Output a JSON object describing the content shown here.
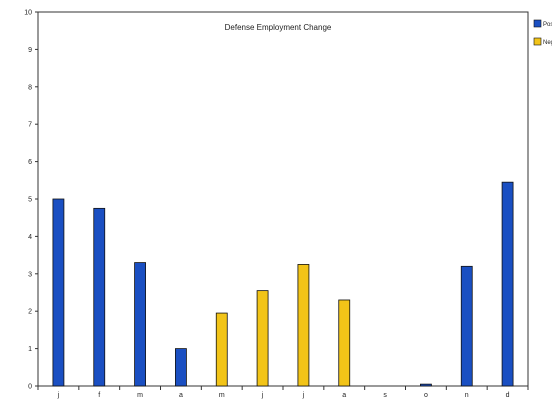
{
  "chart_data": {
    "type": "bar",
    "title": "Defense Employment Change",
    "xlabel": "",
    "ylabel": "",
    "ylim": [
      0,
      10
    ],
    "y_ticks": [
      0,
      1,
      2,
      3,
      4,
      5,
      6,
      7,
      8,
      9,
      10
    ],
    "y_tick_labels": [
      "0",
      "1",
      "2",
      "3",
      "4",
      "5",
      "6",
      "7",
      "8",
      "9",
      "10"
    ],
    "categories": [
      "j",
      "f",
      "m",
      "a",
      "m",
      "j",
      "j",
      "a",
      "s",
      "o",
      "n",
      "d"
    ],
    "series": [
      {
        "name": "Pos",
        "color": "#1a4fc2",
        "values": [
          5.0,
          4.75,
          3.3,
          1.0,
          0,
          0,
          0,
          0,
          0,
          0.05,
          3.2,
          5.45
        ]
      },
      {
        "name": "Neg",
        "color": "#f2c418",
        "values": [
          0,
          0,
          0,
          0,
          1.95,
          2.55,
          3.25,
          2.3,
          0,
          0,
          0,
          0
        ]
      }
    ],
    "grid": false,
    "legend_position": "right"
  }
}
